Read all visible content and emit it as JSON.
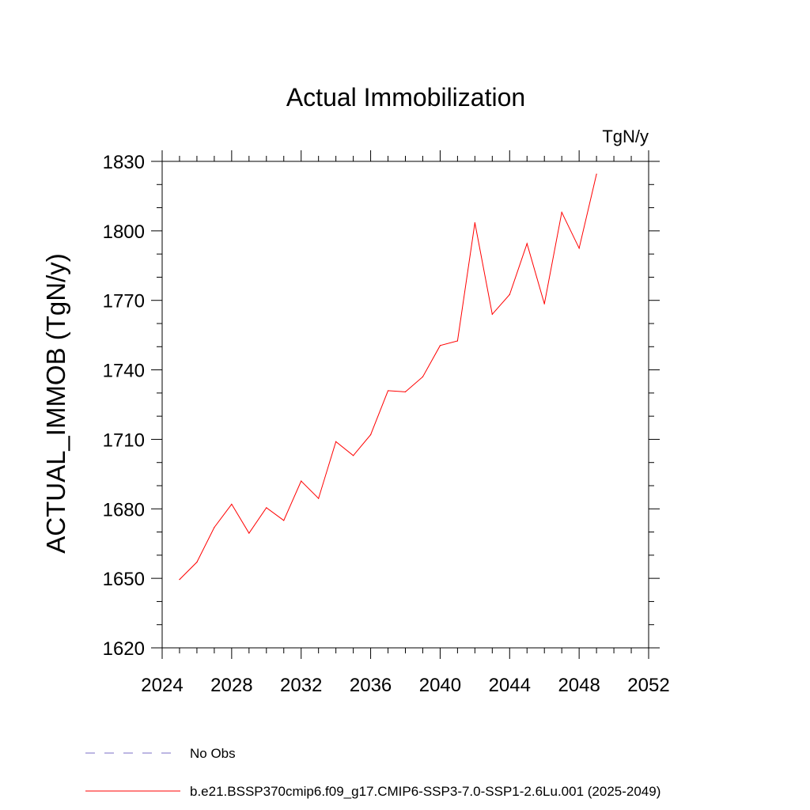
{
  "chart_data": {
    "type": "line",
    "title": "Actual Immobilization",
    "units": "TgN/y",
    "xlabel": "",
    "ylabel": "ACTUAL_IMMOB  (TgN/y)",
    "xlim": [
      2024,
      2052
    ],
    "ylim": [
      1620,
      1830
    ],
    "x_ticks": [
      "2024",
      "2028",
      "2032",
      "2036",
      "2040",
      "2044",
      "2048",
      "2052"
    ],
    "y_ticks": [
      "1620",
      "1650",
      "1680",
      "1710",
      "1740",
      "1770",
      "1800",
      "1830"
    ],
    "grid": false,
    "x": [
      2025,
      2026,
      2027,
      2028,
      2029,
      2030,
      2031,
      2032,
      2033,
      2034,
      2035,
      2036,
      2037,
      2038,
      2039,
      2040,
      2041,
      2042,
      2043,
      2044,
      2045,
      2046,
      2047,
      2048,
      2049
    ],
    "series": [
      {
        "name": "b.e21.BSSP370cmip6.f09_g17.CMIP6-SSP3-7.0-SSP1-2.6Lu.001 (2025-2049)",
        "color": "#ff0000",
        "values": [
          1649.5,
          1657,
          1672,
          1682,
          1669.5,
          1680.5,
          1675,
          1692,
          1684.5,
          1709,
          1703,
          1712,
          1731,
          1730.5,
          1737,
          1750.5,
          1752.5,
          1803.5,
          1764,
          1772.5,
          1794.5,
          1768.5,
          1808,
          1792.5,
          1824.5
        ]
      }
    ],
    "legend": [
      {
        "label": "No Obs",
        "style": "dashed",
        "color": "#7b6fc7"
      },
      {
        "label": "b.e21.BSSP370cmip6.f09_g17.CMIP6-SSP3-7.0-SSP1-2.6Lu.001 (2025-2049)",
        "style": "solid",
        "color": "#ff0000"
      }
    ],
    "legend_position": "bottom"
  }
}
